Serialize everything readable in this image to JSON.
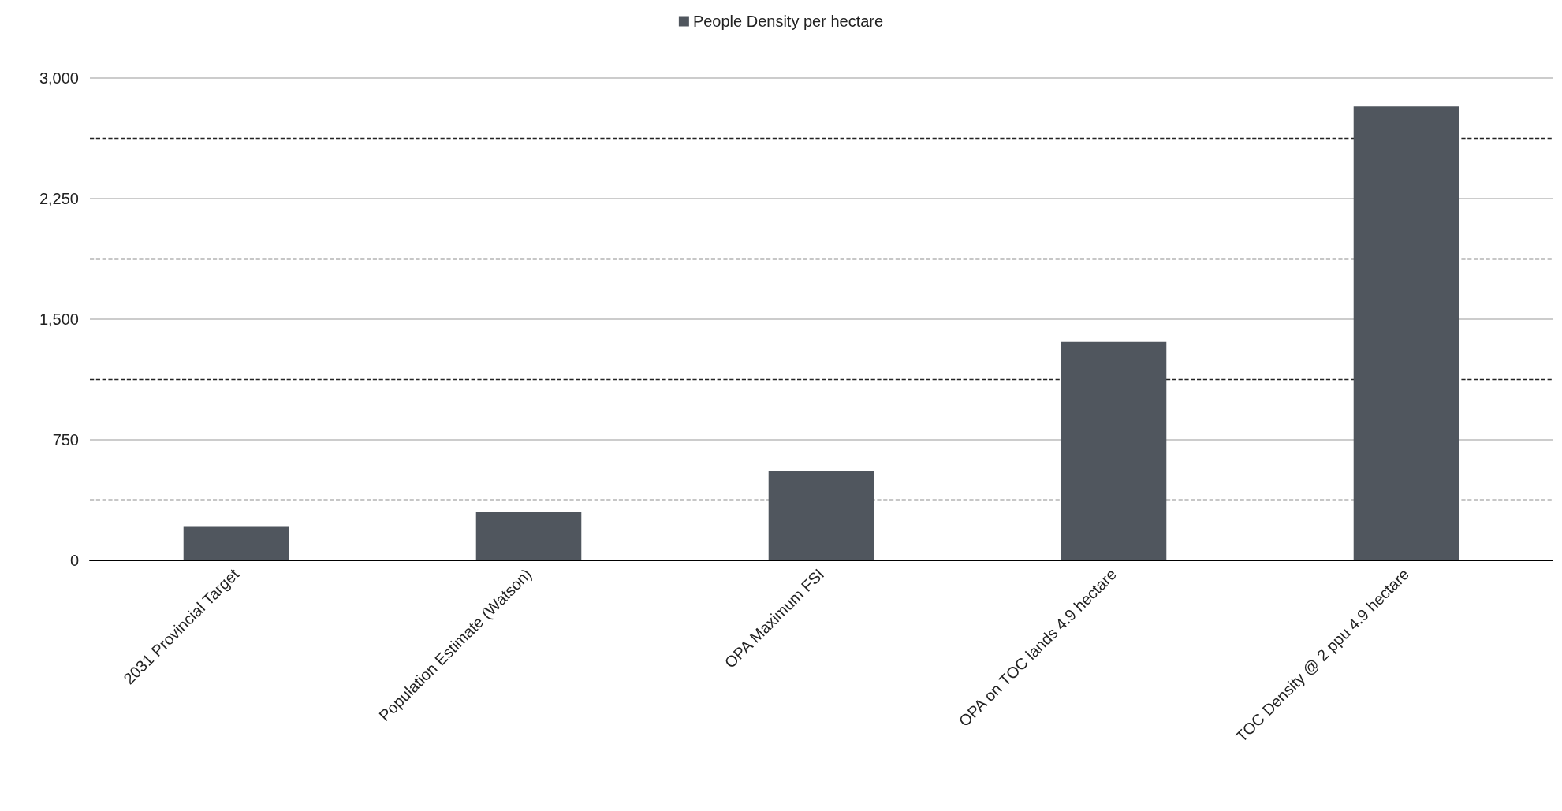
{
  "chart_data": {
    "type": "bar",
    "categories": [
      "2031 Provincial Target",
      "Population Estimate (Watson)",
      "OPA Maximum FSI",
      "OPA on TOC lands 4.9 hectare",
      "TOC Density @ 2 ppu 4.9 hectare"
    ],
    "series": [
      {
        "name": "People Density per hectare",
        "color": "#50565e",
        "values": [
          208,
          300,
          557,
          1359,
          2822
        ]
      }
    ],
    "ylim": [
      0,
      3000
    ],
    "yticks": [
      0,
      {
        "value": 375,
        "label": null
      },
      {
        "value": 750,
        "label": "750"
      },
      {
        "value": 1125,
        "label": null
      },
      {
        "value": 1500,
        "label": "1,500"
      },
      {
        "value": 1875,
        "label": null
      },
      {
        "value": 2250,
        "label": "2,250"
      },
      {
        "value": 2625,
        "label": null
      },
      {
        "value": 3000,
        "label": "3,000"
      }
    ],
    "grid": "y",
    "legend": "top"
  }
}
